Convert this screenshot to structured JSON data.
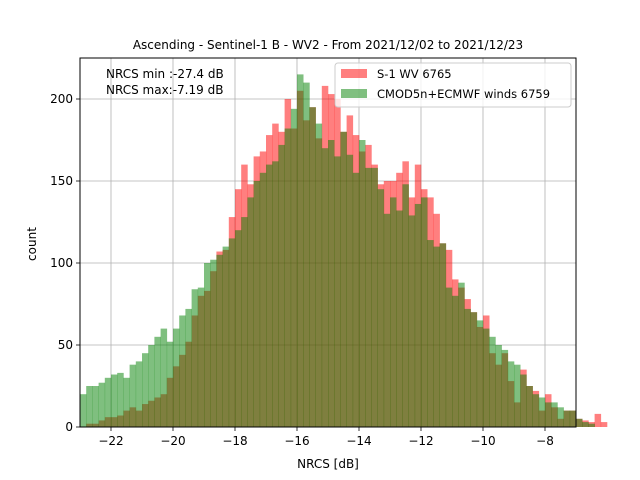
{
  "chart_data": {
    "type": "bar",
    "title": "Ascending - Sentinel-1 B - WV2 - From 2021/12/02 to 2021/12/23",
    "xlabel": "NRCS [dB]",
    "ylabel": "count",
    "xlim": [
      -23.0,
      -7.0
    ],
    "ylim": [
      0,
      225
    ],
    "xticks": [
      -22,
      -20,
      -18,
      -16,
      -14,
      -12,
      -10,
      -8
    ],
    "yticks": [
      0,
      50,
      100,
      150,
      200
    ],
    "grid": true,
    "legend_position": "upper right",
    "annotations": [
      "NRCS min :-27.4 dB",
      "NRCS max:-7.19 dB"
    ],
    "bin_start": -23.0,
    "bin_width": 0.2,
    "series": [
      {
        "name": "S-1 WV 6765",
        "color": "#ff0000",
        "opacity": 0.5,
        "values": [
          0,
          2,
          2,
          4,
          6,
          6,
          7,
          10,
          12,
          10,
          14,
          16,
          18,
          20,
          30,
          37,
          44,
          52,
          68,
          80,
          83,
          95,
          107,
          108,
          128,
          145,
          160,
          148,
          165,
          168,
          178,
          185,
          180,
          200,
          182,
          205,
          187,
          195,
          176,
          208,
          203,
          200,
          180,
          190,
          178,
          168,
          172,
          160,
          148,
          150,
          150,
          155,
          162,
          140,
          160,
          145,
          140,
          130,
          112,
          108,
          90,
          85,
          78,
          70,
          61,
          68,
          45,
          38,
          45,
          28,
          15,
          35,
          25,
          22,
          10,
          20,
          12,
          5,
          10,
          10,
          5,
          4,
          3,
          8,
          3
        ]
      },
      {
        "name": "CMOD5n+ECMWF winds 6759",
        "color": "#008000",
        "opacity": 0.5,
        "values": [
          20,
          25,
          25,
          27,
          30,
          32,
          33,
          30,
          38,
          40,
          45,
          50,
          55,
          60,
          52,
          60,
          68,
          72,
          84,
          85,
          100,
          102,
          105,
          110,
          115,
          120,
          128,
          140,
          150,
          155,
          160,
          162,
          172,
          182,
          194,
          215,
          210,
          195,
          185,
          170,
          175,
          165,
          180,
          166,
          155,
          175,
          158,
          158,
          145,
          130,
          140,
          132,
          148,
          129,
          136,
          140,
          114,
          110,
          112,
          85,
          80,
          88,
          72,
          70,
          65,
          60,
          55,
          50,
          47,
          40,
          38,
          32,
          25,
          20,
          18,
          15,
          15,
          12,
          10,
          10,
          5,
          3,
          2,
          0,
          0
        ]
      }
    ]
  }
}
